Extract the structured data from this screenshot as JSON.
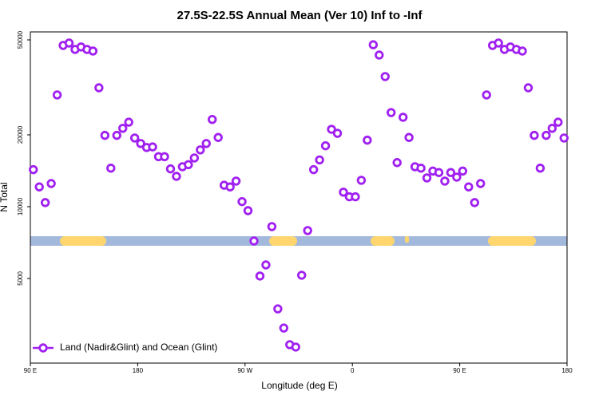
{
  "chart_data": {
    "type": "scatter",
    "title": "27.5S-22.5S Annual Mean (Ver 10)   Inf to -Inf",
    "x_label": "Longitude (deg E)",
    "y_label": "N Total",
    "log_y": true,
    "legend": "lower left",
    "xlim": [
      90,
      540
    ],
    "xticks": [
      {
        "value": 90,
        "label": "90 E"
      },
      180,
      {
        "value": 270,
        "label": "90 W"
      },
      {
        "value": 360,
        "label": "0"
      },
      {
        "value": 450,
        "label": "90 E"
      },
      {
        "value": 540,
        "label": "180"
      }
    ],
    "ylim": [
      2210,
      54000
    ],
    "yticks": [
      5000,
      10000,
      20000,
      50000
    ],
    "series": [
      {
        "name": "Land (Nadir&Glint) and Ocean (Glint)",
        "color": "#a020f0",
        "x": [
          92.5,
          97.5,
          102.5,
          107.5,
          112.5,
          117.5,
          122.5,
          127.5,
          132.5,
          137.5,
          142.5,
          147.5,
          152.5,
          157.5,
          162.5,
          167.5,
          172.5,
          177.5,
          182.5,
          187.5,
          192.5,
          197.5,
          202.5,
          207.5,
          212.5,
          217.5,
          222.5,
          227.5,
          232.5,
          237.5,
          242.5,
          247.5,
          252.5,
          257.5,
          262.5,
          267.5,
          272.5,
          277.5,
          282.5,
          287.5,
          292.5,
          297.5,
          302.5,
          307.5,
          312.5,
          317.5,
          322.5,
          327.5,
          332.5,
          337.5,
          342.5,
          347.5,
          352.5,
          357.5,
          362.5,
          367.5,
          372.5,
          377.5,
          382.5,
          387.5,
          392.5,
          397.5,
          402.5,
          407.5,
          412.5,
          417.5,
          422.5,
          427.5,
          432.5,
          437.5,
          442.5,
          447.5,
          452.5,
          457.5,
          462.5,
          467.5,
          472.5,
          477.5,
          482.5,
          487.5,
          492.5,
          497.5,
          502.5,
          507.5,
          512.5,
          517.5,
          522.5,
          527.5,
          532.5,
          537.5
        ],
        "values": [
          14300,
          12100,
          10400,
          12500,
          29400,
          47400,
          48500,
          45600,
          46700,
          45600,
          44900,
          31500,
          19900,
          14500,
          19900,
          21300,
          22600,
          19400,
          18400,
          17700,
          17800,
          16200,
          16200,
          14400,
          13400,
          14700,
          15000,
          16000,
          17300,
          18400,
          23200,
          19500,
          12300,
          12100,
          12800,
          10500,
          9620,
          7180,
          5120,
          5700,
          8250,
          3730,
          3100,
          2640,
          2580,
          5160,
          7940,
          14300,
          15700,
          18000,
          21100,
          20300,
          11500,
          11000,
          11000,
          12900,
          19000,
          47700,
          43200,
          35100,
          24800,
          15300,
          23700,
          19500,
          14700,
          14500,
          13200,
          14100,
          13900,
          12800,
          13900,
          13300,
          14100,
          12100,
          10400,
          12500,
          29400,
          47400,
          48500,
          45600,
          46700,
          45600,
          44900,
          31500,
          19900,
          14500,
          19900,
          21300,
          22600,
          19400
        ]
      }
    ]
  }
}
